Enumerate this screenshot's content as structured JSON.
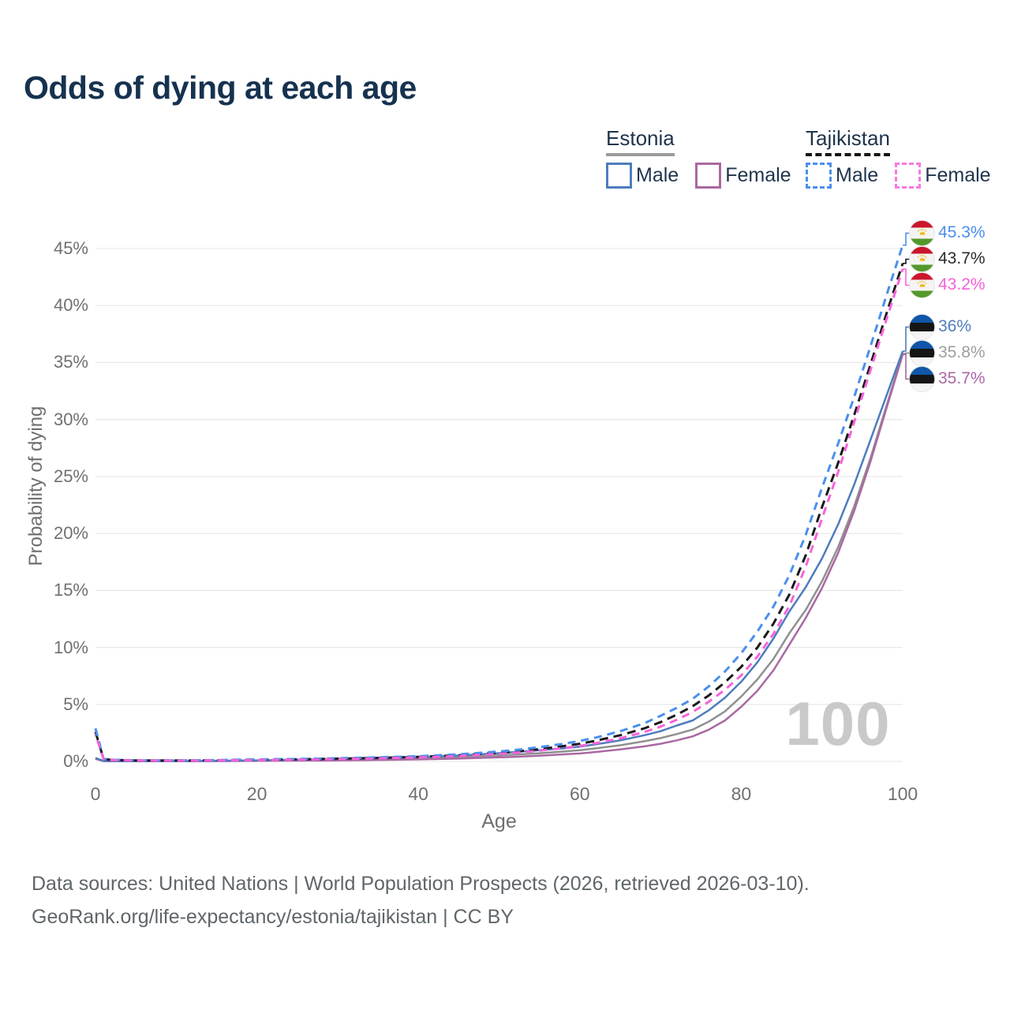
{
  "header": {
    "title": "Odds of dying at each age"
  },
  "legend": {
    "groups": [
      {
        "country": "Estonia",
        "line_style": "solid",
        "underline_color": "#9b9b9b",
        "items": [
          {
            "label": "Male",
            "color": "#4d7cbe",
            "dash": false
          },
          {
            "label": "Female",
            "color": "#aa68a2",
            "dash": false
          }
        ]
      },
      {
        "country": "Tajikistan",
        "line_style": "dashed",
        "underline_color": "#141414",
        "items": [
          {
            "label": "Male",
            "color": "#4a8fee",
            "dash": true
          },
          {
            "label": "Female",
            "color": "#f879e2",
            "dash": true
          }
        ]
      }
    ]
  },
  "flags": {
    "estonia": {
      "bands": [
        "#1156a8",
        "#151515",
        "#f5f5f5"
      ]
    },
    "tajikistan": {
      "bands": [
        "#cc162c",
        "#f4f4f4",
        "#55982a"
      ],
      "emblem": "#f0b400"
    }
  },
  "chart_data": {
    "type": "line",
    "title": "Odds of dying at each age",
    "xlabel": "Age",
    "ylabel": "Probability of dying",
    "xlim": [
      0,
      100
    ],
    "ylim_pct": [
      0,
      46.5
    ],
    "grid": "horizontal",
    "legend_position": "top-right",
    "watermark": "100",
    "x_ticks": [
      {
        "value": 0,
        "label": "0"
      },
      {
        "value": 20,
        "label": "20"
      },
      {
        "value": 40,
        "label": "40"
      },
      {
        "value": 60,
        "label": "60"
      },
      {
        "value": 80,
        "label": "80"
      },
      {
        "value": 100,
        "label": "100"
      }
    ],
    "y_ticks": [
      {
        "value": 0,
        "label": "0%"
      },
      {
        "value": 5,
        "label": "5%"
      },
      {
        "value": 10,
        "label": "10%"
      },
      {
        "value": 15,
        "label": "15%"
      },
      {
        "value": 20,
        "label": "20%"
      },
      {
        "value": 25,
        "label": "25%"
      },
      {
        "value": 30,
        "label": "30%"
      },
      {
        "value": 35,
        "label": "35%"
      },
      {
        "value": 40,
        "label": "40%"
      },
      {
        "value": 45,
        "label": "45%"
      }
    ],
    "ages": [
      0,
      1,
      2,
      5,
      10,
      15,
      20,
      25,
      30,
      35,
      40,
      45,
      50,
      52,
      55,
      58,
      60,
      62,
      65,
      68,
      70,
      72,
      74,
      76,
      78,
      80,
      82,
      84,
      86,
      88,
      90,
      92,
      94,
      96,
      98,
      100
    ],
    "series": [
      {
        "id": "taj_male",
        "country": "Tajikistan",
        "sex": "Male",
        "color": "#4a8fee",
        "dash": true,
        "flag": "tajikistan",
        "end_label": "45.3%",
        "end_label_color": "#4a8fee",
        "end_value_pct": 45.3,
        "values_pct": [
          2.9,
          0.25,
          0.15,
          0.1,
          0.09,
          0.12,
          0.18,
          0.22,
          0.28,
          0.36,
          0.46,
          0.62,
          0.88,
          1.0,
          1.25,
          1.55,
          1.8,
          2.1,
          2.65,
          3.35,
          4.0,
          4.7,
          5.5,
          6.6,
          7.9,
          9.5,
          11.4,
          13.6,
          16.4,
          19.9,
          24.0,
          27.9,
          32.0,
          36.4,
          40.9,
          45.3
        ]
      },
      {
        "id": "taj_both",
        "country": "Tajikistan",
        "sex": "Both sexes",
        "color": "#1a1a1a",
        "dash": true,
        "flag": "tajikistan",
        "end_label": "43.7%",
        "end_label_color": "#2a2a2a",
        "end_value_pct": 43.7,
        "values_pct": [
          2.6,
          0.22,
          0.13,
          0.09,
          0.08,
          0.1,
          0.15,
          0.19,
          0.24,
          0.31,
          0.4,
          0.54,
          0.76,
          0.87,
          1.08,
          1.35,
          1.55,
          1.82,
          2.3,
          2.9,
          3.45,
          4.1,
          4.85,
          5.8,
          6.95,
          8.3,
          10.0,
          12.1,
          14.7,
          18.1,
          22.3,
          26.2,
          30.4,
          34.8,
          39.3,
          43.7
        ]
      },
      {
        "id": "taj_female",
        "country": "Tajikistan",
        "sex": "Female",
        "color": "#f763da",
        "dash": true,
        "flag": "tajikistan",
        "end_label": "43.2%",
        "end_label_color": "#f761d8",
        "end_value_pct": 43.2,
        "values_pct": [
          2.4,
          0.2,
          0.12,
          0.08,
          0.07,
          0.09,
          0.12,
          0.16,
          0.2,
          0.27,
          0.35,
          0.47,
          0.66,
          0.76,
          0.94,
          1.18,
          1.36,
          1.6,
          2.03,
          2.58,
          3.05,
          3.65,
          4.35,
          5.25,
          6.3,
          7.55,
          9.2,
          11.2,
          13.7,
          17.1,
          21.3,
          25.4,
          29.8,
          34.3,
          38.8,
          43.2
        ]
      },
      {
        "id": "est_male",
        "country": "Estonia",
        "sex": "Male",
        "color": "#4d7cbe",
        "dash": false,
        "flag": "estonia",
        "end_label": "36%",
        "end_label_color": "#4f7cbd",
        "end_value_pct": 36.0,
        "values_pct": [
          0.3,
          0.05,
          0.04,
          0.03,
          0.03,
          0.06,
          0.1,
          0.15,
          0.2,
          0.28,
          0.38,
          0.52,
          0.73,
          0.83,
          0.98,
          1.15,
          1.3,
          1.5,
          1.85,
          2.3,
          2.65,
          3.15,
          3.6,
          4.5,
          5.6,
          7.0,
          8.7,
          10.8,
          13.2,
          15.3,
          17.8,
          20.8,
          24.3,
          28.2,
          32.1,
          36.0
        ]
      },
      {
        "id": "est_both",
        "country": "Estonia",
        "sex": "Both sexes",
        "color": "#909090",
        "dash": false,
        "flag": "estonia",
        "end_label": "35.8%",
        "end_label_color": "#9e9e9e",
        "end_value_pct": 35.8,
        "values_pct": [
          0.27,
          0.04,
          0.03,
          0.02,
          0.02,
          0.05,
          0.07,
          0.1,
          0.14,
          0.2,
          0.27,
          0.38,
          0.53,
          0.6,
          0.72,
          0.87,
          0.98,
          1.15,
          1.42,
          1.77,
          2.05,
          2.4,
          2.8,
          3.5,
          4.4,
          5.7,
          7.2,
          9.0,
          11.3,
          13.3,
          15.8,
          18.8,
          22.4,
          26.6,
          31.2,
          35.8
        ]
      },
      {
        "id": "est_female",
        "country": "Estonia",
        "sex": "Female",
        "color": "#aa68a2",
        "dash": false,
        "flag": "estonia",
        "end_label": "35.7%",
        "end_label_color": "#a868a4",
        "end_value_pct": 35.7,
        "values_pct": [
          0.23,
          0.03,
          0.02,
          0.02,
          0.02,
          0.03,
          0.05,
          0.07,
          0.09,
          0.13,
          0.18,
          0.25,
          0.36,
          0.41,
          0.5,
          0.62,
          0.7,
          0.83,
          1.05,
          1.32,
          1.55,
          1.85,
          2.2,
          2.8,
          3.6,
          4.8,
          6.2,
          8.0,
          10.3,
          12.6,
          15.2,
          18.3,
          22.0,
          26.3,
          31.0,
          35.7
        ]
      }
    ]
  },
  "footer": {
    "line1": "Data sources: United Nations | World Population Prospects (2026, retrieved 2026-03-10).",
    "line2": "GeoRank.org/life-expectancy/estonia/tajikistan | CC BY"
  }
}
